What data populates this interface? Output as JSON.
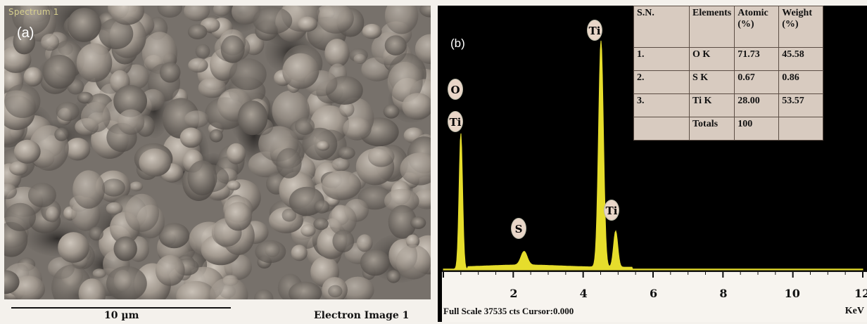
{
  "panel_a": {
    "spectrum_tag": "Spectrum 1",
    "label": "(a)",
    "scale_label": "10 µm",
    "caption": "Electron Image 1"
  },
  "panel_b": {
    "label": "(b)",
    "full_scale": "Full Scale 37535 cts Cursor:0.000",
    "axis_unit": "KeV",
    "peak_labels": [
      "O",
      "Ti",
      "S",
      "Ti",
      "Ti"
    ],
    "table": {
      "headers": [
        "S.N.",
        "Elements",
        "Atomic (%)",
        "Weight (%)"
      ],
      "rows": [
        [
          "1.",
          "O K",
          "71.73",
          "45.58"
        ],
        [
          "2.",
          "S K",
          "0.67",
          "0.86"
        ],
        [
          "3.",
          "Ti K",
          "28.00",
          "53.57"
        ],
        [
          "",
          "Totals",
          "100",
          ""
        ]
      ]
    },
    "colors": {
      "spectrum_fill": "#e6dd2c",
      "background": "#000000"
    }
  },
  "chart_data": {
    "type": "area",
    "xlabel": "KeV",
    "xlim": [
      0,
      12
    ],
    "x_ticks": [
      "2",
      "4",
      "6",
      "8",
      "10",
      "12"
    ],
    "peaks": [
      {
        "label": "O / Ti",
        "x": 0.5,
        "relative_height": 0.6
      },
      {
        "label": "S",
        "x": 2.31,
        "relative_height": 0.06
      },
      {
        "label": "Ti",
        "x": 4.51,
        "relative_height": 1.0
      },
      {
        "label": "Ti",
        "x": 4.93,
        "relative_height": 0.16
      }
    ]
  }
}
